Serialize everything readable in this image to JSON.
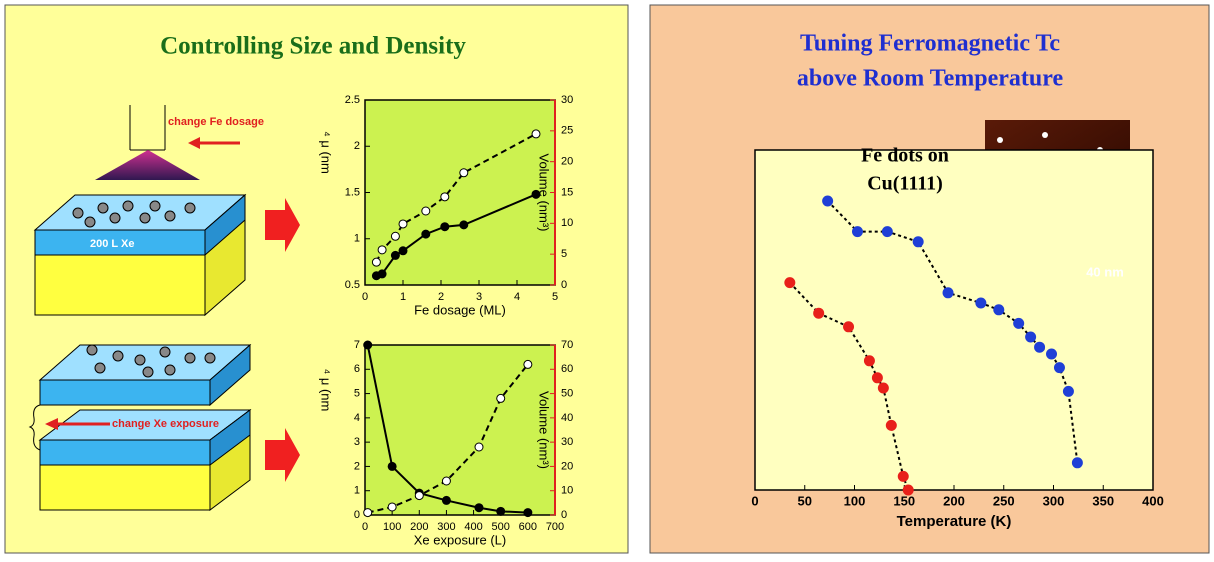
{
  "slide": {
    "left_title": "Controlling Size and Density",
    "right_title": [
      "Tuning Ferromagnetic Tc",
      "above Room Temperature"
    ],
    "labels": [
      "change Fe dosage",
      "200 L Xe",
      "change Xe exposure"
    ]
  },
  "chart_data": [
    {
      "type": "scatter",
      "xlabel": "Fe dosage (ML)",
      "ylabel": "⁴ μ (nm",
      "y2label": "Volume (nm³)",
      "xlim": [
        0,
        5
      ],
      "xticks": [
        0,
        1,
        2,
        3,
        4,
        5
      ],
      "ylim": [
        0.5,
        2.5
      ],
      "yticks": [
        0.5,
        1,
        1.5,
        2,
        2.5
      ],
      "y2lim": [
        0,
        30
      ],
      "y2ticks": [
        0,
        5,
        10,
        15,
        20,
        25,
        30
      ],
      "background": "#ccf250",
      "series": [
        {
          "color": "#000000",
          "marker": "filled",
          "line_style": "solid",
          "x": [
            0.3,
            0.45,
            0.8,
            1.0,
            1.6,
            2.1,
            2.6,
            4.5
          ],
          "values": [
            0.6,
            0.62,
            0.82,
            0.87,
            1.05,
            1.13,
            1.15,
            1.48
          ]
        },
        {
          "color": "#000000",
          "marker": "open",
          "line_style": "dashed",
          "axis": "y2",
          "x": [
            0.3,
            0.45,
            0.8,
            1.0,
            1.6,
            2.1,
            2.6,
            4.5
          ],
          "values": [
            3.7,
            5.7,
            7.9,
            9.9,
            12,
            14.3,
            18.2,
            24.5
          ]
        }
      ]
    },
    {
      "type": "scatter",
      "xlabel": "Xe exposure (L)",
      "ylabel": "⁴ μ (nm",
      "y2label": "Volume (nm³)",
      "xlim": [
        0,
        700
      ],
      "xticks": [
        0,
        100,
        200,
        300,
        400,
        500,
        600,
        700
      ],
      "ylim": [
        0,
        7
      ],
      "yticks": [
        0,
        1,
        2,
        3,
        4,
        5,
        6,
        7
      ],
      "y2lim": [
        0,
        70
      ],
      "y2ticks": [
        0,
        10,
        20,
        30,
        40,
        50,
        60,
        70
      ],
      "background": "#ccf250",
      "series": [
        {
          "color": "#000000",
          "marker": "filled",
          "line_style": "solid",
          "x": [
            10,
            100,
            200,
            300,
            420,
            500,
            600
          ],
          "values": [
            7,
            2,
            0.9,
            0.6,
            0.3,
            0.15,
            0.1
          ]
        },
        {
          "color": "#000000",
          "marker": "open",
          "line_style": "dashed",
          "axis": "y2",
          "x": [
            10,
            100,
            200,
            300,
            420,
            500,
            600
          ],
          "values": [
            1,
            3.3,
            8,
            14,
            28,
            48,
            62
          ]
        }
      ]
    },
    {
      "type": "scatter",
      "xlabel": "Temperature (K)",
      "annotations": [
        "Fe dots on",
        "Cu(1111)",
        "40 nm"
      ],
      "xlim": [
        0,
        400
      ],
      "xticks": [
        0,
        50,
        100,
        150,
        200,
        250,
        300,
        350,
        400
      ],
      "ylim": [
        0,
        1
      ],
      "background": "#ffffc0",
      "series": [
        {
          "color": "#1f3fd6",
          "marker": "filled",
          "line_style": "dotted",
          "x": [
            73,
            103,
            133,
            164,
            194,
            227,
            245,
            265,
            277,
            286,
            298,
            306,
            315,
            324
          ],
          "values": [
            0.85,
            0.76,
            0.76,
            0.73,
            0.58,
            0.55,
            0.53,
            0.49,
            0.45,
            0.42,
            0.4,
            0.36,
            0.29,
            0.08
          ]
        },
        {
          "color": "#e8201a",
          "marker": "filled",
          "line_style": "dotted",
          "x": [
            35,
            64,
            94,
            115,
            123,
            129,
            137,
            149,
            154
          ],
          "values": [
            0.61,
            0.52,
            0.48,
            0.38,
            0.33,
            0.3,
            0.19,
            0.04,
            0
          ]
        }
      ]
    }
  ]
}
